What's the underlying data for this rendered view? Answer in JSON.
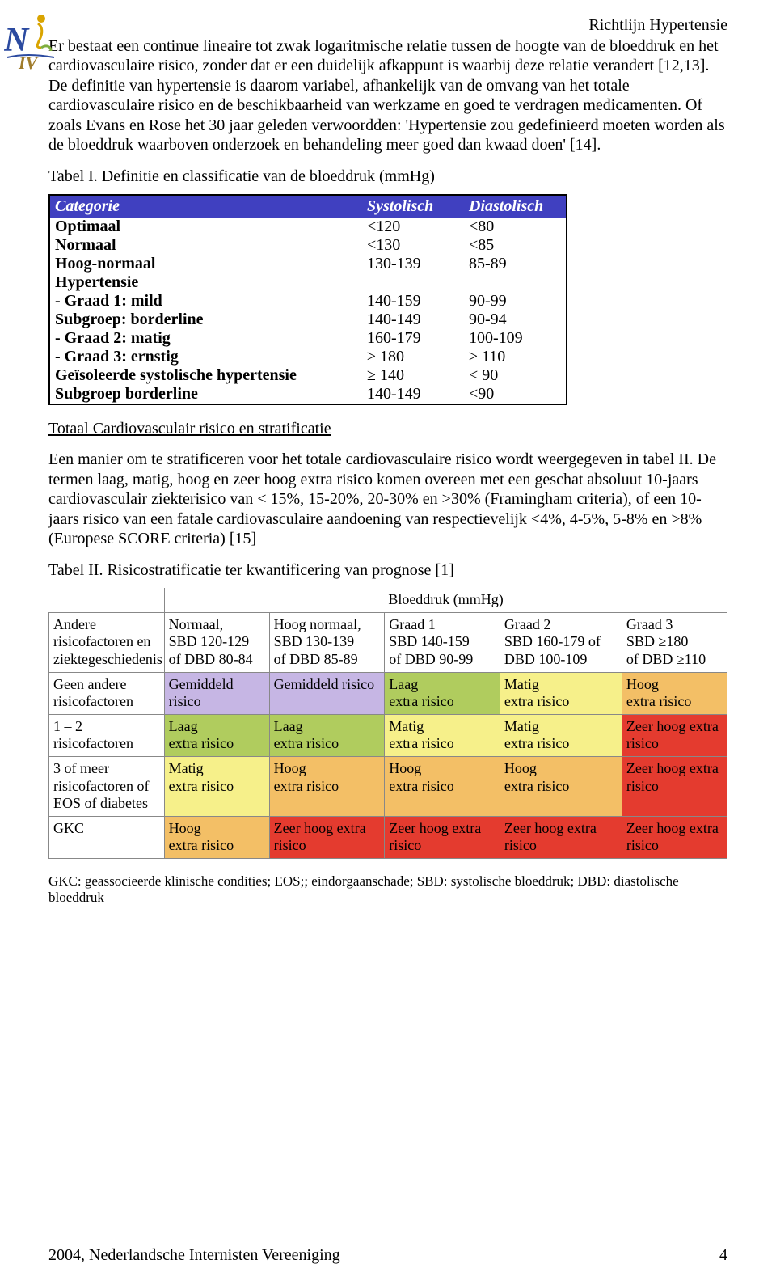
{
  "header": {
    "title": "Richtlijn Hypertensie"
  },
  "text": {
    "p1": "Er bestaat een continue lineaire tot zwak logaritmische relatie tussen de hoogte van de bloeddruk en het cardiovasculaire risico, zonder dat er een duidelijk afkappunt is waarbij deze relatie verandert [12,13]. De definitie van hypertensie is daarom variabel,  afhankelijk van de omvang van het totale cardiovasculaire risico en de beschikbaarheid van werkzame en goed te verdragen medicamenten. Of zoals Evans en Rose het 30 jaar geleden verwoordden: 'Hypertensie zou gedefinieerd moeten worden als de bloeddruk waarboven onderzoek en behandeling meer goed dan kwaad doen' [14].",
    "caption1": "Tabel I. Definitie en classificatie van de bloeddruk (mmHg)",
    "subhead": "Totaal Cardiovasculair risico en stratificatie",
    "p2": "Een manier om te stratificeren voor het totale cardiovasculaire risico wordt weergegeven in tabel II. De termen laag, matig, hoog en zeer hoog extra risico komen overeen met een geschat absoluut 10-jaars cardiovasculair ziekterisico van < 15%, 15-20%, 20-30% en >30% (Framingham criteria), of  een 10-jaars risico van een fatale cardiovasculaire aandoening van respectievelijk <4%,  4-5%, 5-8% en >8% (Europese SCORE criteria) [15]",
    "caption2": "Tabel II. Risicostratificatie ter kwantificering van prognose [1]"
  },
  "table1": {
    "headers": {
      "cat": "Categorie",
      "sys": "Systolisch",
      "dia": "Diastolisch"
    },
    "rows": [
      {
        "cat": "Optimaal",
        "sys": "<120",
        "dia": "<80"
      },
      {
        "cat": "Normaal",
        "sys": "<130",
        "dia": "<85"
      },
      {
        "cat": "Hoog-normaal",
        "sys": "130-139",
        "dia": "85-89"
      },
      {
        "cat": "Hypertensie",
        "sys": "",
        "dia": ""
      },
      {
        "cat": "- Graad 1: mild",
        "sys": "140-159",
        "dia": "90-99"
      },
      {
        "cat": "Subgroep: borderline",
        "sys": "140-149",
        "dia": "90-94"
      },
      {
        "cat": "- Graad 2: matig",
        "sys": "160-179",
        "dia": "100-109"
      },
      {
        "cat": "- Graad 3: ernstig",
        "sys": "≥ 180",
        "dia": "≥ 110"
      },
      {
        "cat": "Geïsoleerde systolische hypertensie",
        "sys": "≥ 140",
        "dia": "< 90"
      },
      {
        "cat": "Subgroep borderline",
        "sys": "140-149",
        "dia": "<90"
      }
    ]
  },
  "table2": {
    "bp_title": "Bloeddruk (mmHg)",
    "col_headers": {
      "c0": "Andere risicofactoren en ziektegeschiedenis",
      "c1": "Normaal,\nSBD 120-129\nof DBD 80-84",
      "c2": "Hoog normaal,\nSBD 130-139\nof DBD 85-89",
      "c3": "Graad 1\nSBD 140-159\nof DBD 90-99",
      "c4": "Graad 2\nSBD 160-179 of DBD 100-109",
      "c5": "Graad 3\nSBD ≥180\nof DBD ≥110"
    },
    "colors": {
      "avg": "#c6b6e4",
      "low": "#b0cc5e",
      "med": "#f6f08a",
      "high": "#f3bf66",
      "vhigh": "#e43b2f",
      "plain": "#ffffff"
    },
    "rows": [
      {
        "label": "Geen andere risicofactoren",
        "cells": [
          {
            "t": "Gemiddeld risico",
            "c": "avg"
          },
          {
            "t": "Gemiddeld risico",
            "c": "avg"
          },
          {
            "t": "Laag\nextra risico",
            "c": "low"
          },
          {
            "t": "Matig\nextra risico",
            "c": "med"
          },
          {
            "t": "Hoog\nextra risico",
            "c": "high"
          }
        ]
      },
      {
        "label": "1 – 2 risicofactoren",
        "cells": [
          {
            "t": "Laag\nextra risico",
            "c": "low"
          },
          {
            "t": "Laag\nextra risico",
            "c": "low"
          },
          {
            "t": "Matig\nextra risico",
            "c": "med"
          },
          {
            "t": "Matig\nextra risico",
            "c": "med"
          },
          {
            "t": "Zeer hoog extra risico",
            "c": "vhigh"
          }
        ]
      },
      {
        "label": "3 of meer risicofactoren of EOS of diabetes",
        "cells": [
          {
            "t": "Matig\nextra risico",
            "c": "med"
          },
          {
            "t": "Hoog\nextra risico",
            "c": "high"
          },
          {
            "t": "Hoog\nextra risico",
            "c": "high"
          },
          {
            "t": "Hoog\nextra risico",
            "c": "high"
          },
          {
            "t": "Zeer hoog extra risico",
            "c": "vhigh"
          }
        ]
      },
      {
        "label": "GKC",
        "cells": [
          {
            "t": "Hoog\nextra risico",
            "c": "high"
          },
          {
            "t": "Zeer hoog extra risico",
            "c": "vhigh"
          },
          {
            "t": "Zeer hoog extra risico",
            "c": "vhigh"
          },
          {
            "t": "Zeer hoog extra risico",
            "c": "vhigh"
          },
          {
            "t": "Zeer hoog extra risico",
            "c": "vhigh"
          }
        ]
      }
    ]
  },
  "footnote": "GKC: geassocieerde klinische condities; EOS;; eindorgaanschade; SBD: systolische bloeddruk; DBD: diastolische bloeddruk",
  "footer": {
    "left": "2004, Nederlandsche Internisten Vereeniging",
    "page": "4"
  },
  "logo": {
    "main_text": "N",
    "sub_text": "IV",
    "colors": {
      "n": "#2b4aa0",
      "iv": "#a07c2b",
      "accent": "#d9a400",
      "green": "#7fae3f"
    }
  }
}
